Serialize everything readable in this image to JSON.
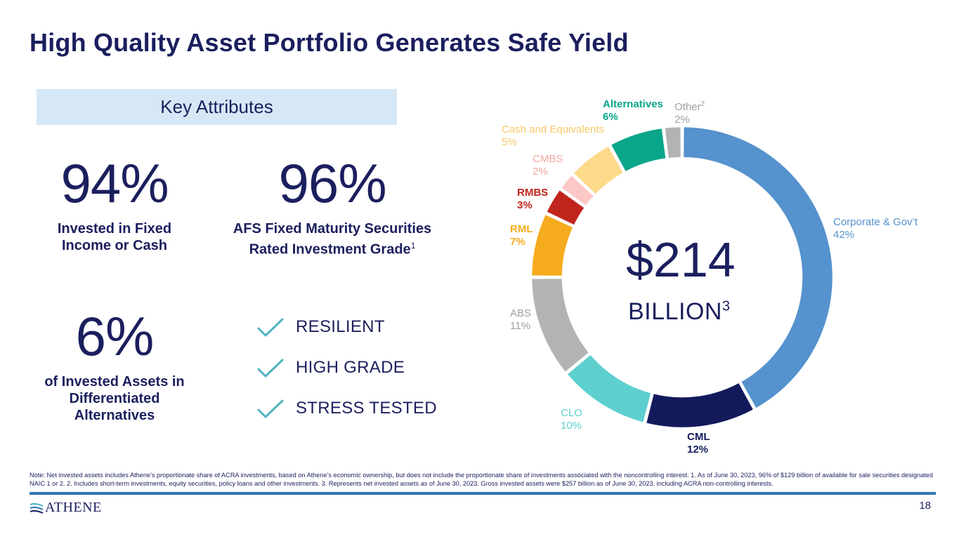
{
  "title": "High Quality Asset Portfolio Generates Safe Yield",
  "key_attributes": {
    "heading": "Key Attributes",
    "stats": [
      {
        "value": "94%",
        "label": "Invested in Fixed Income or Cash",
        "sup": ""
      },
      {
        "value": "96%",
        "label": "AFS Fixed Maturity Securities Rated Investment Grade",
        "sup": "1"
      },
      {
        "value": "6%",
        "label": "of Invested Assets in Differentiated Alternatives",
        "sup": ""
      }
    ],
    "checklist": [
      "RESILIENT",
      "HIGH GRADE",
      "STRESS TESTED"
    ],
    "check_color": "#4fb3c0"
  },
  "chart_data": {
    "type": "pie",
    "center_value": "$214",
    "center_unit": "BILLION",
    "center_unit_sup": "3",
    "slices": [
      {
        "label": "Corporate & Gov’t",
        "sup": "",
        "pct_label": "42%",
        "value": 42,
        "color": "#5592ce",
        "label_color": "#5592ce"
      },
      {
        "label": "CML",
        "sup": "",
        "pct_label": "12%",
        "value": 12,
        "color": "#131a5c",
        "label_color": "#131a5c"
      },
      {
        "label": "CLO",
        "sup": "",
        "pct_label": "10%",
        "value": 10,
        "color": "#5ecfcf",
        "label_color": "#5ecfcf"
      },
      {
        "label": "ABS",
        "sup": "",
        "pct_label": "11%",
        "value": 11,
        "color": "#b3b3b3",
        "label_color": "#a0a0a0"
      },
      {
        "label": "RML",
        "sup": "",
        "pct_label": "7%",
        "value": 7,
        "color": "#f6ab1e",
        "label_color": "#f6ab1e"
      },
      {
        "label": "RMBS",
        "sup": "",
        "pct_label": "3%",
        "value": 3,
        "color": "#c0241c",
        "label_color": "#c0241c"
      },
      {
        "label": "CMBS",
        "sup": "",
        "pct_label": "2%",
        "value": 2,
        "color": "#fcc8c6",
        "label_color": "#f4a7a3"
      },
      {
        "label": "Cash and Equivalents",
        "sup": "",
        "pct_label": "5%",
        "value": 5,
        "color": "#fdd98a",
        "label_color": "#f8c86a"
      },
      {
        "label": "Alternatives",
        "sup": "",
        "pct_label": "6%",
        "value": 6,
        "color": "#0aa68a",
        "label_color": "#0aa68a"
      },
      {
        "label": "Other",
        "sup": "2",
        "pct_label": "2%",
        "value": 2,
        "color": "#b3b3b3",
        "label_color": "#a0a0a0"
      }
    ]
  },
  "footnote": "Note: Net invested assets includes Athene's proportionate share of ACRA investments, based on Athene's economic ownership, but does not include the proportionate share of investments associated with the noncontrolling interest. 1. As of June 30, 2023, 96% of $129 billion of available for sale securities designated NAIC 1 or 2. 2. Includes short-term investments, equity securities, policy loans and other investments. 3. Represents net invested assets as of June 30, 2023. Gross invested assets were $257 billion as of June 30, 2023, including ACRA non-controlling interests.",
  "footer": {
    "logo_text": "ATHENE",
    "page_number": "18"
  }
}
